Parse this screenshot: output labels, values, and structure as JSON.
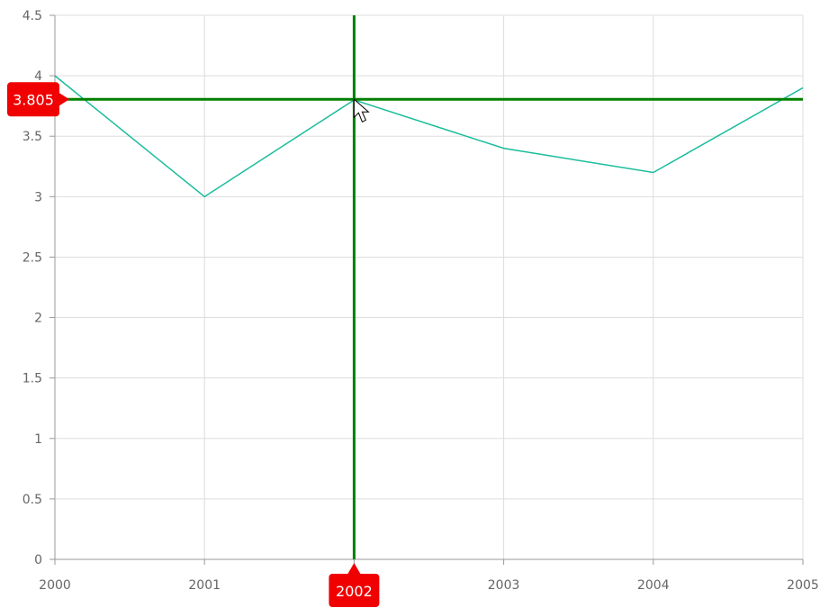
{
  "chart_data": {
    "type": "line",
    "title": "",
    "xlabel": "",
    "ylabel": "",
    "x": [
      2000,
      2001,
      2002,
      2003,
      2004,
      2005
    ],
    "x_tick_labels": [
      "2000",
      "2001",
      "2002",
      "2003",
      "2004",
      "2005"
    ],
    "y_tick_labels": [
      "0",
      "0.5",
      "1",
      "1.5",
      "2",
      "2.5",
      "3",
      "3.5",
      "4",
      "4.5"
    ],
    "xlim": [
      2000,
      2005
    ],
    "ylim": [
      0,
      4.5
    ],
    "grid": true,
    "series": [
      {
        "values": [
          4.0,
          3.0,
          3.8,
          3.4,
          3.2,
          3.9
        ],
        "color": "#1abc9c"
      }
    ],
    "crosshair": {
      "x": 2002,
      "y": 3.805,
      "x_label": "2002",
      "y_label": "3.805",
      "line_color": "#008000",
      "badge_color": "#f00000"
    }
  }
}
